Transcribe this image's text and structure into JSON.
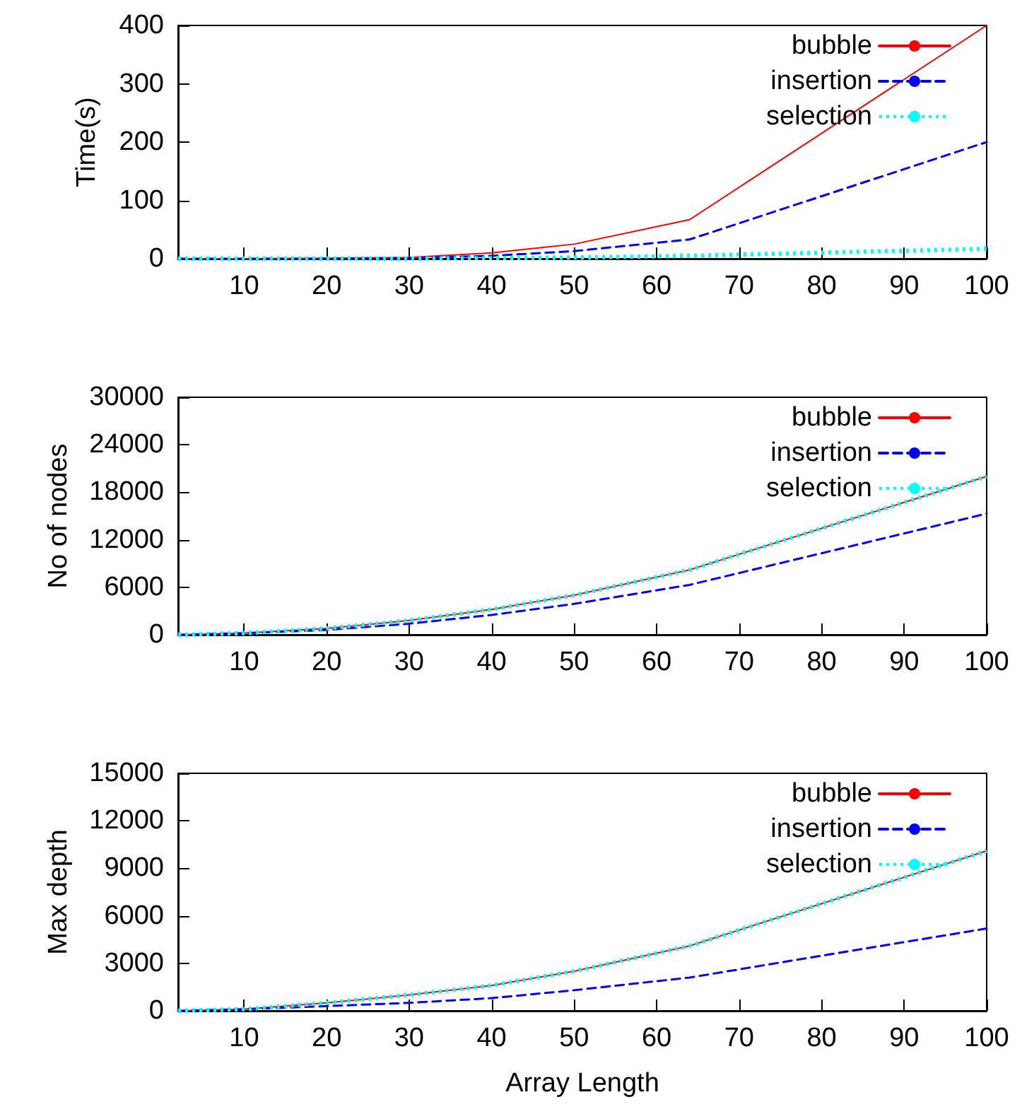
{
  "chart_data": [
    {
      "type": "line",
      "ylabel": "Time(s)",
      "x": [
        2,
        10,
        20,
        30,
        40,
        50,
        64,
        100
      ],
      "xlim": [
        2,
        100
      ],
      "xticks": [
        10,
        20,
        30,
        40,
        50,
        60,
        70,
        80,
        90,
        100
      ],
      "ylim": [
        0,
        400
      ],
      "yticks": [
        0,
        100,
        200,
        300,
        400
      ],
      "legend": "top right",
      "marker": "none",
      "grid": false,
      "series": [
        {
          "name": "bubble",
          "color": "#ff0000",
          "line_style": "solid",
          "values": [
            0,
            0,
            1,
            2,
            10,
            25,
            67,
            400
          ]
        },
        {
          "name": "insertion",
          "color": "#0000ff",
          "line_style": "dashed",
          "values": [
            0,
            0,
            0,
            1,
            5,
            13,
            33,
            200
          ]
        },
        {
          "name": "selection",
          "color": "#00ffff",
          "line_style": "dotted",
          "values": [
            0,
            0,
            0,
            0,
            1,
            2,
            5,
            17
          ]
        }
      ]
    },
    {
      "type": "line",
      "ylabel": "No of nodes",
      "x": [
        2,
        10,
        20,
        30,
        40,
        50,
        64,
        100
      ],
      "xlim": [
        2,
        100
      ],
      "xticks": [
        10,
        20,
        30,
        40,
        50,
        60,
        70,
        80,
        90,
        100
      ],
      "ylim": [
        0,
        30000
      ],
      "yticks": [
        0,
        6000,
        12000,
        18000,
        24000,
        30000
      ],
      "legend": "top right",
      "marker": "none",
      "grid": false,
      "series": [
        {
          "name": "bubble",
          "color": "#ff0000",
          "line_style": "solid",
          "values": [
            0,
            200,
            800,
            1800,
            3200,
            5000,
            8200,
            20000
          ]
        },
        {
          "name": "insertion",
          "color": "#0000ff",
          "line_style": "dashed",
          "values": [
            0,
            200,
            600,
            1400,
            2500,
            3900,
            6300,
            15300
          ]
        },
        {
          "name": "selection",
          "color": "#00ffff",
          "line_style": "dotted",
          "values": [
            0,
            200,
            800,
            1800,
            3200,
            5000,
            8200,
            20000
          ]
        }
      ]
    },
    {
      "type": "line",
      "xlabel": "Array Length",
      "ylabel": "Max depth",
      "x": [
        2,
        10,
        20,
        30,
        40,
        50,
        64,
        100
      ],
      "xlim": [
        2,
        100
      ],
      "xticks": [
        10,
        20,
        30,
        40,
        50,
        60,
        70,
        80,
        90,
        100
      ],
      "ylim": [
        0,
        15000
      ],
      "yticks": [
        0,
        3000,
        6000,
        9000,
        12000,
        15000
      ],
      "legend": "top right",
      "marker": "none",
      "grid": false,
      "series": [
        {
          "name": "bubble",
          "color": "#ff0000",
          "line_style": "solid",
          "values": [
            0,
            100,
            500,
            1000,
            1600,
            2500,
            4100,
            10100
          ]
        },
        {
          "name": "insertion",
          "color": "#0000ff",
          "line_style": "dashed",
          "values": [
            0,
            100,
            300,
            500,
            800,
            1300,
            2100,
            5200
          ]
        },
        {
          "name": "selection",
          "color": "#00ffff",
          "line_style": "dotted",
          "values": [
            0,
            100,
            500,
            1000,
            1600,
            2500,
            4100,
            10100
          ]
        }
      ]
    }
  ]
}
